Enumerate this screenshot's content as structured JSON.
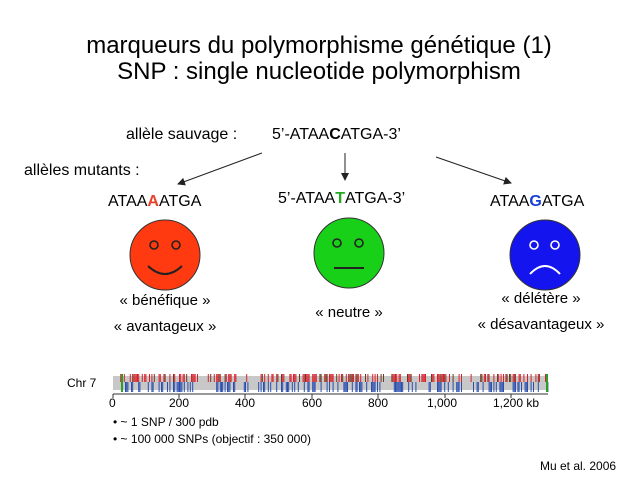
{
  "title": {
    "line1": "marqueurs du polymorphisme génétique (1)",
    "line2": "SNP : single nucleotide polymorphism"
  },
  "wild_type": {
    "label": "allèle sauvage :",
    "seq_prefix": "5’-ATAA",
    "seq_base": "C",
    "seq_suffix": "ATGA-3’"
  },
  "mutants_label": "allèles mutants :",
  "mutants": [
    {
      "prefix": "ATAA",
      "base": "A",
      "suffix": "ATGA",
      "base_color": "#e8402a",
      "face_color": "#ff3a10",
      "mood": "smile",
      "lines": [
        "« bénéfique »",
        "« avantageux »"
      ]
    },
    {
      "prefix": "5’-ATAA",
      "base": "T",
      "suffix": "ATGA-3’",
      "base_color": "#22aa22",
      "face_color": "#19d019",
      "mood": "neutral",
      "lines": [
        "« neutre »"
      ]
    },
    {
      "prefix": "ATAA",
      "base": "G",
      "suffix": "ATGA",
      "base_color": "#1a3fd6",
      "face_color": "#1414ee",
      "mood": "frown",
      "lines": [
        "« délétère »",
        "« désavantageux »"
      ]
    }
  ],
  "chromosome": {
    "label": "Chr 7",
    "ticks": [
      "0",
      "200",
      "400",
      "600",
      "800",
      "1,000",
      "1,200 kb"
    ],
    "colors": {
      "red": "#d8202a",
      "blue": "#2a4fb0",
      "brown": "#6b3a20",
      "green": "#2aa02a",
      "track": "#c8c8c8"
    }
  },
  "bullets": [
    "~ 1 SNP / 300 pdb",
    "~ 100 000 SNPs (objectif : 350 000)"
  ],
  "citation": "Mu et al. 2006"
}
